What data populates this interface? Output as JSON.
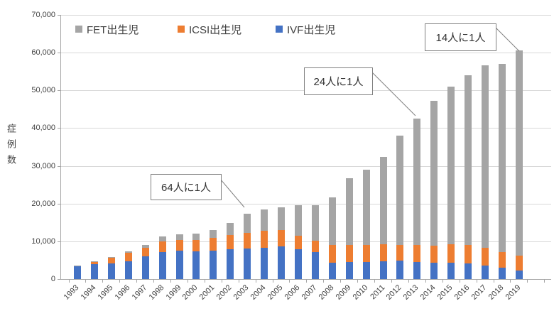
{
  "chart_data": {
    "type": "bar",
    "stacked": true,
    "ylabel": "症例数",
    "ylim": [
      0,
      70000
    ],
    "y_tick_interval": 10000,
    "y_tick_labels": [
      "0",
      "10,000",
      "20,000",
      "30,000",
      "40,000",
      "50,000",
      "60,000",
      "70,000"
    ],
    "grid": true,
    "legend_position": "top-inside",
    "categories": [
      "1993",
      "1994",
      "1995",
      "1996",
      "1997",
      "1998",
      "1999",
      "2000",
      "2001",
      "2002",
      "2003",
      "2004",
      "2005",
      "2006",
      "2007",
      "2008",
      "2009",
      "2010",
      "2011",
      "2012",
      "2013",
      "2014",
      "2015",
      "2016",
      "2017",
      "2018",
      "2019"
    ],
    "series": [
      {
        "name": "IVF出生児",
        "color": "#4472c4",
        "values": [
          3500,
          3900,
          4200,
          4800,
          6000,
          7100,
          7500,
          7300,
          7600,
          7850,
          8050,
          8350,
          8650,
          7900,
          7200,
          4400,
          4500,
          4600,
          4700,
          4850,
          4600,
          4400,
          4350,
          4100,
          3600,
          2950,
          2200
        ]
      },
      {
        "name": "ICSI出生児",
        "color": "#ed7d31",
        "values": [
          0,
          700,
          1400,
          2200,
          2200,
          2800,
          2900,
          3100,
          3300,
          3800,
          4200,
          4400,
          4400,
          3600,
          3000,
          4700,
          4450,
          4500,
          4500,
          4250,
          4400,
          4400,
          4900,
          4900,
          4600,
          4150,
          3950
        ]
      },
      {
        "name": "FET出生児",
        "color": "#a5a5a5",
        "values": [
          150,
          100,
          150,
          250,
          900,
          1300,
          1400,
          1600,
          2000,
          3300,
          5150,
          5650,
          6000,
          8000,
          9300,
          12600,
          17750,
          19850,
          23200,
          28850,
          33550,
          38500,
          41750,
          45100,
          48400,
          49900,
          54450
        ]
      }
    ],
    "totals": [
      3650,
      4700,
      5750,
      7250,
      9100,
      11200,
      11800,
      12000,
      12900,
      14950,
      17400,
      18400,
      19050,
      19500,
      19500,
      21700,
      26700,
      28950,
      32400,
      37950,
      42550,
      47300,
      51000,
      54100,
      56600,
      57000,
      60600
    ],
    "legend": [
      {
        "label": "FET出生児",
        "color": "#a5a5a5"
      },
      {
        "label": "ICSI出生児",
        "color": "#ed7d31"
      },
      {
        "label": "IVF出生児",
        "color": "#4472c4"
      }
    ],
    "annotations": [
      {
        "text": "64人に1人",
        "target_year": "2003"
      },
      {
        "text": "24人に1人",
        "target_year": "2013"
      },
      {
        "text": "14人に1人",
        "target_year": "2019"
      }
    ]
  },
  "colors": {
    "gridline": "#d9d9d9",
    "axis": "#a6a6a6",
    "text": "#404040",
    "annotation_border": "#7f7f7f",
    "callout_line": "#808080"
  }
}
